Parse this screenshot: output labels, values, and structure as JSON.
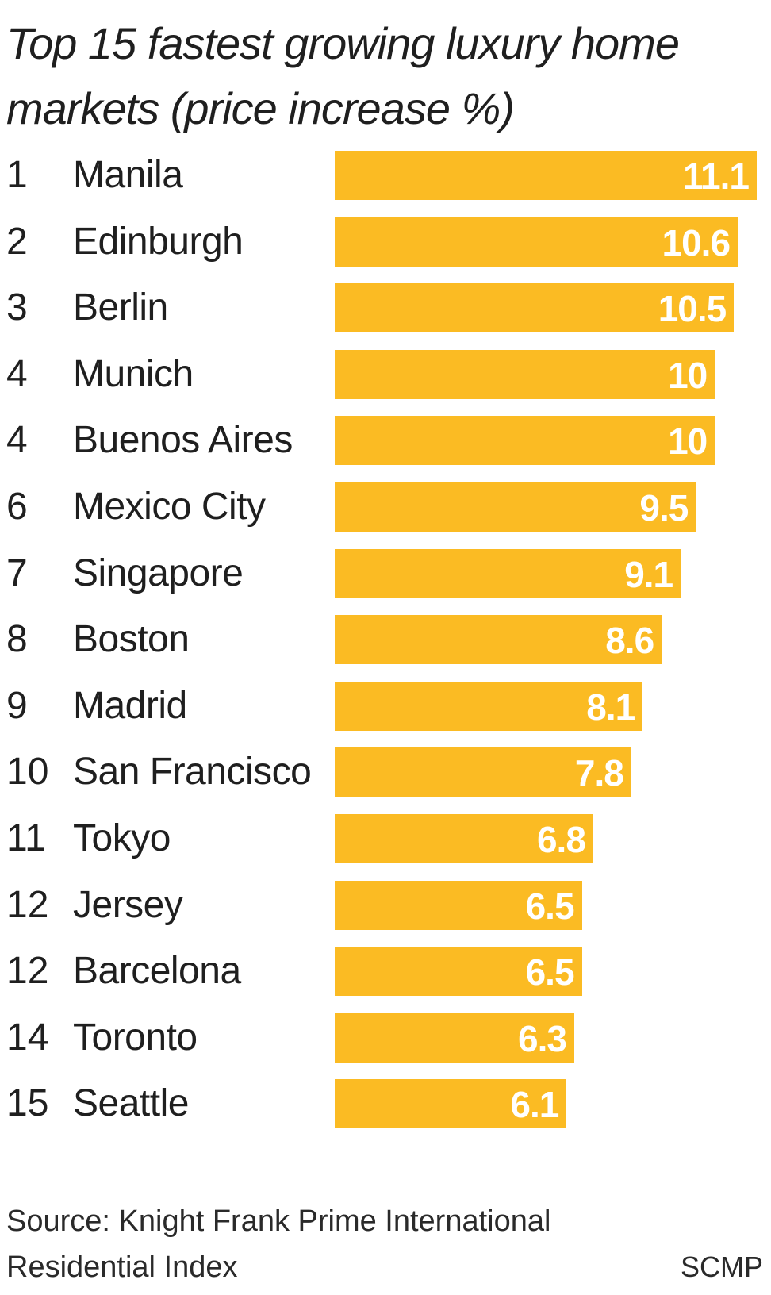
{
  "chart_data": {
    "type": "bar",
    "orientation": "horizontal",
    "title": "Top 15 fastest growing luxury home markets (price increase %)",
    "categories": [
      "Manila",
      "Edinburgh",
      "Berlin",
      "Munich",
      "Buenos Aires",
      "Mexico City",
      "Singapore",
      "Boston",
      "Madrid",
      "San Francisco",
      "Tokyo",
      "Jersey",
      "Barcelona",
      "Toronto",
      "Seattle"
    ],
    "ranks": [
      "1",
      "2",
      "3",
      "4",
      "4",
      "6",
      "7",
      "8",
      "9",
      "10",
      "11",
      "12",
      "12",
      "14",
      "15"
    ],
    "values": [
      11.1,
      10.6,
      10.5,
      10,
      10,
      9.5,
      9.1,
      8.6,
      8.1,
      7.8,
      6.8,
      6.5,
      6.5,
      6.3,
      6.1
    ],
    "value_labels": [
      "11.1",
      "10.6",
      "10.5",
      "10",
      "10",
      "9.5",
      "9.1",
      "8.6",
      "8.1",
      "7.8",
      "6.8",
      "6.5",
      "6.5",
      "6.3",
      "6.1"
    ],
    "xlim": [
      0,
      11.1
    ],
    "bar_color": "#FBBB23",
    "value_label_color": "#FFFFFF",
    "grid": false,
    "source": "Source: Knight Frank Prime International Residential Index",
    "credit": "SCMP"
  }
}
